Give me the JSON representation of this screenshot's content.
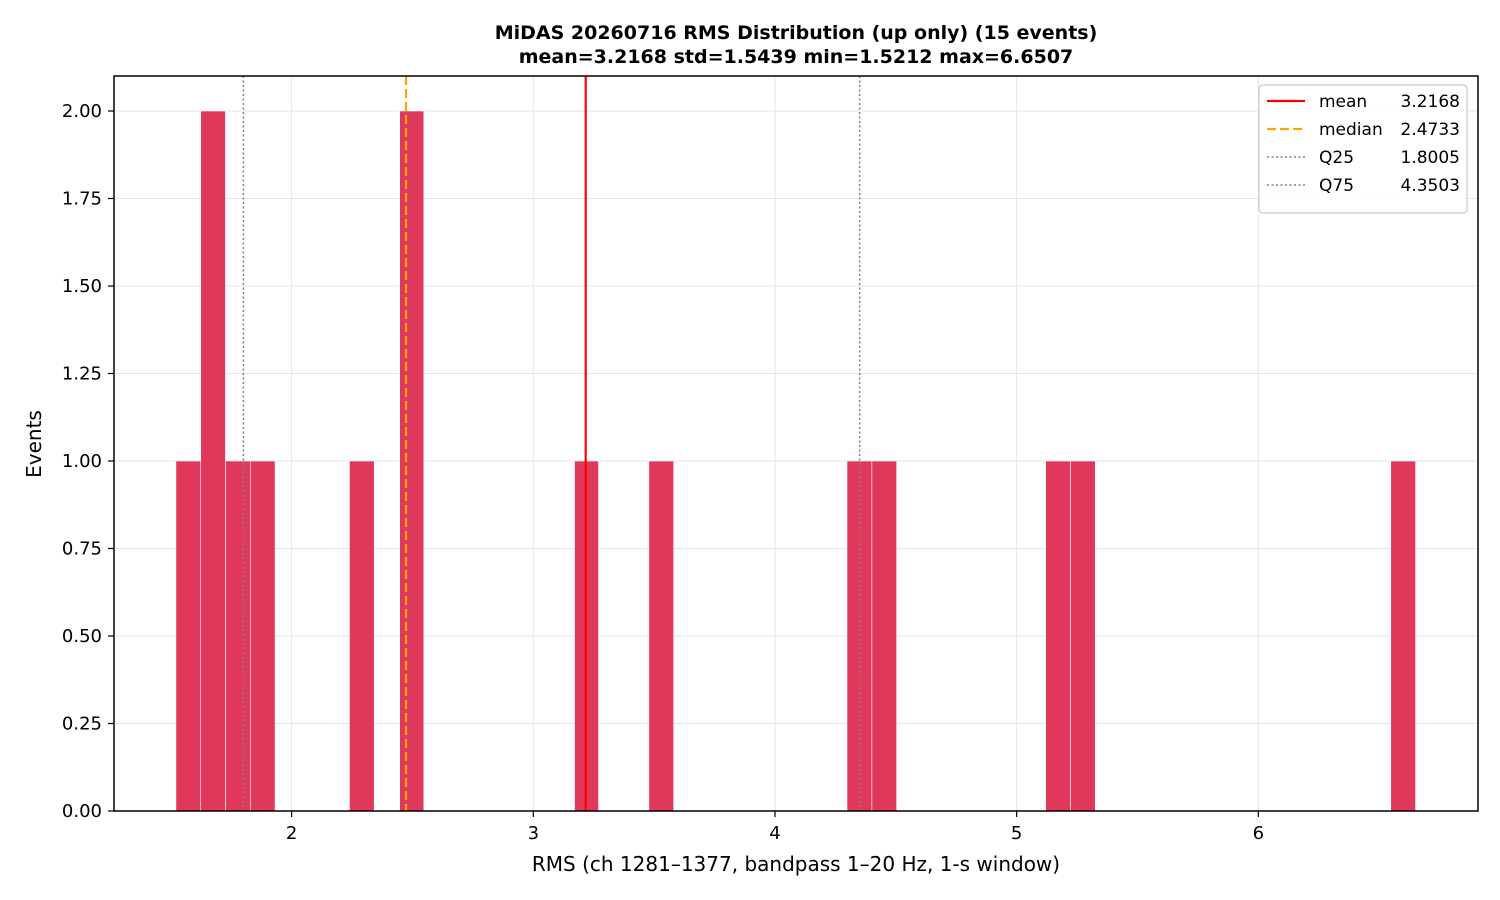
{
  "chart_data": {
    "type": "bar",
    "title": "MiDAS 20260716  RMS Distribution  (up only)  (15 events)",
    "subtitle": "mean=3.2168  std=1.5439  min=1.5212  max=6.6507",
    "xlabel": "RMS  (ch 1281–1377, bandpass 1–20 Hz, 1-s window)",
    "ylabel": "Events",
    "xlim": [
      1.265,
      6.909
    ],
    "ylim": [
      0,
      2.1
    ],
    "xticks": [
      2,
      3,
      4,
      5,
      6
    ],
    "xtick_labels": [
      "2",
      "3",
      "4",
      "5",
      "6"
    ],
    "yticks": [
      0,
      0.25,
      0.5,
      0.75,
      1.0,
      1.25,
      1.5,
      1.75,
      2.0
    ],
    "ytick_labels": [
      "0.00",
      "0.25",
      "0.50",
      "0.75",
      "1.00",
      "1.25",
      "1.50",
      "1.75",
      "2.00"
    ],
    "grid": true,
    "legend_placement": "top-right",
    "bar_color": "#e0385a",
    "bins": [
      {
        "x0": 1.5212,
        "x1": 1.6238,
        "count": 1
      },
      {
        "x0": 1.6238,
        "x1": 1.7263,
        "count": 2
      },
      {
        "x0": 1.7263,
        "x1": 1.8289,
        "count": 1
      },
      {
        "x0": 1.8289,
        "x1": 1.9315,
        "count": 1
      },
      {
        "x0": 2.2393,
        "x1": 2.3418,
        "count": 1
      },
      {
        "x0": 2.447,
        "x1": 2.547,
        "count": 2
      },
      {
        "x0": 3.1705,
        "x1": 3.27,
        "count": 1
      },
      {
        "x0": 3.4783,
        "x1": 3.5808,
        "count": 1
      },
      {
        "x0": 4.298,
        "x1": 4.401,
        "count": 1
      },
      {
        "x0": 4.401,
        "x1": 4.5035,
        "count": 1
      },
      {
        "x0": 5.12,
        "x1": 5.223,
        "count": 1
      },
      {
        "x0": 5.223,
        "x1": 5.3255,
        "count": 1
      },
      {
        "x0": 6.548,
        "x1": 6.6507,
        "count": 1
      }
    ],
    "reference_lines": [
      {
        "label": "mean",
        "value": 3.2168,
        "value_text": "3.2168",
        "color": "#ff0000",
        "style": "solid"
      },
      {
        "label": "median",
        "value": 2.4733,
        "value_text": "2.4733",
        "color": "#ffa500",
        "style": "dashed"
      },
      {
        "label": "Q25",
        "value": 1.8005,
        "value_text": "1.8005",
        "color": "#808080",
        "style": "dotted"
      },
      {
        "label": "Q75",
        "value": 4.3503,
        "value_text": "4.3503",
        "color": "#808080",
        "style": "dotted"
      }
    ]
  }
}
